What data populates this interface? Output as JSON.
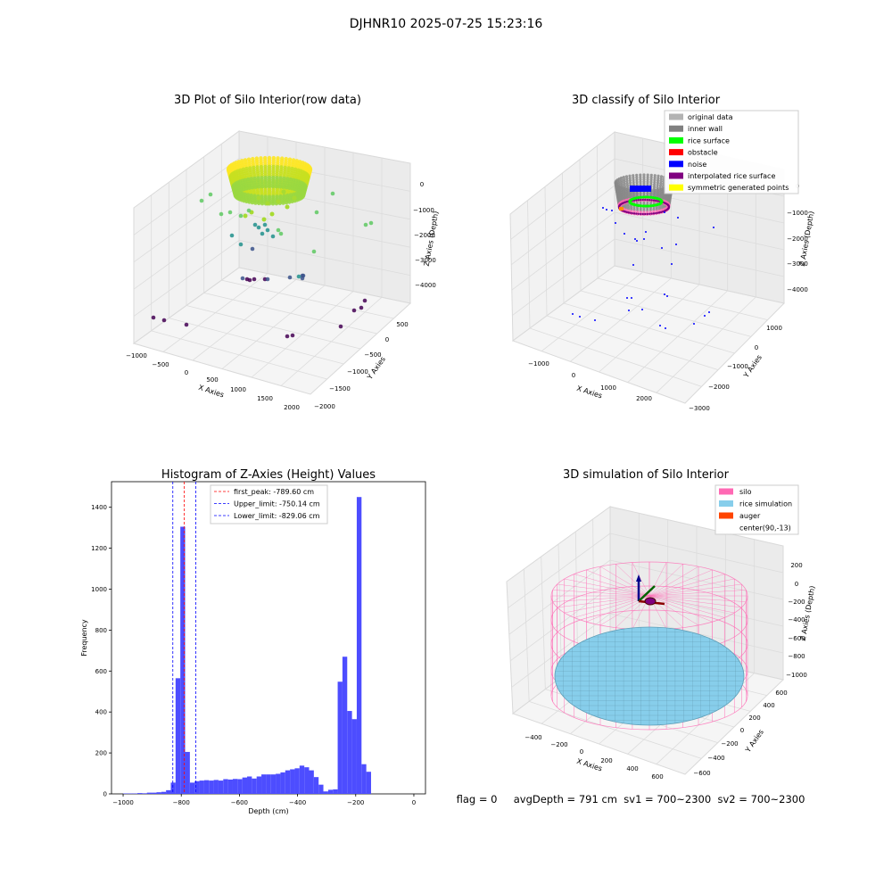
{
  "figure": {
    "suptitle": "DJHNR10 2025-07-25 15:23:16",
    "status_line": "flag = 0     avgDepth = 791 cm  sv1 = 700~2300  sv2 = 700~2300"
  },
  "chart_data": [
    {
      "type": "scatter",
      "projection": "3d",
      "title": "3D Plot of Silo Interior(row data)",
      "xlabel": "X Axies",
      "ylabel": "Y Axies",
      "zlabel": "Z Axies (Depth)",
      "x_ticks": [
        "−1000",
        "−500",
        "0",
        "500",
        "1000",
        "1500",
        "2000"
      ],
      "y_ticks": [
        "−2000",
        "−1500",
        "−1000",
        "−500",
        "0",
        "500"
      ],
      "z_ticks": [
        "0",
        "−1000",
        "−2000",
        "−3000",
        "−4000"
      ],
      "colormap": [
        "#440154",
        "#3b528b",
        "#21918c",
        "#5ec962",
        "#fde725"
      ]
    },
    {
      "type": "scatter",
      "projection": "3d",
      "title": "3D classify of Silo Interior",
      "xlabel": "X Axies",
      "ylabel": "Y Axies",
      "zlabel": "Z Axies (Depth)",
      "x_ticks": [
        "−1000",
        "0",
        "1000",
        "2000"
      ],
      "y_ticks": [
        "−3000",
        "−2000",
        "−1000",
        "0",
        "1000"
      ],
      "z_ticks": [
        "0",
        "−1000",
        "−2000",
        "−3000",
        "−4000"
      ],
      "legend_position": "top-right",
      "legend": [
        {
          "label": "original data",
          "color": "#b3b3b3"
        },
        {
          "label": "inner wall",
          "color": "#808080"
        },
        {
          "label": "rice surface",
          "color": "#00ff00"
        },
        {
          "label": "obstacle",
          "color": "#ff0000"
        },
        {
          "label": "noise",
          "color": "#0000ff"
        },
        {
          "label": "interpolated rice surface",
          "color": "#800080"
        },
        {
          "label": "symmetric generated points",
          "color": "#ffff00"
        }
      ]
    },
    {
      "type": "bar",
      "title": "Histogram of Z-Axies (Height) Values",
      "xlabel": "Depth (cm)",
      "ylabel": "Frequency",
      "xlim": [
        -1040,
        40
      ],
      "ylim": [
        0,
        1525
      ],
      "x_ticks": [
        -1000,
        -800,
        -600,
        -400,
        -200,
        0
      ],
      "x_tick_labels": [
        "−1000",
        "−800",
        "−600",
        "−400",
        "−200",
        "0"
      ],
      "y_ticks": [
        0,
        200,
        400,
        600,
        800,
        1000,
        1200,
        1400
      ],
      "bar_color": "#4d4dff",
      "bin_width": 16.4,
      "bins": [
        [
          -1000,
          2
        ],
        [
          -983.6,
          2
        ],
        [
          -967.2,
          2
        ],
        [
          -950.8,
          4
        ],
        [
          -934.4,
          3
        ],
        [
          -918,
          6
        ],
        [
          -901.6,
          6
        ],
        [
          -885.2,
          8
        ],
        [
          -868.8,
          10
        ],
        [
          -852.4,
          18
        ],
        [
          -836,
          55
        ],
        [
          -819.6,
          565
        ],
        [
          -803.2,
          1305
        ],
        [
          -786.8,
          205
        ],
        [
          -770.4,
          55
        ],
        [
          -754,
          62
        ],
        [
          -737.6,
          65
        ],
        [
          -721.2,
          67
        ],
        [
          -704.8,
          65
        ],
        [
          -688.4,
          68
        ],
        [
          -672,
          65
        ],
        [
          -655.6,
          72
        ],
        [
          -639.2,
          70
        ],
        [
          -622.8,
          73
        ],
        [
          -606.4,
          72
        ],
        [
          -590,
          80
        ],
        [
          -573.6,
          85
        ],
        [
          -557.2,
          75
        ],
        [
          -540.8,
          85
        ],
        [
          -524.4,
          95
        ],
        [
          -508,
          95
        ],
        [
          -491.6,
          95
        ],
        [
          -475.2,
          98
        ],
        [
          -458.8,
          105
        ],
        [
          -442.4,
          115
        ],
        [
          -426,
          120
        ],
        [
          -409.6,
          125
        ],
        [
          -393.2,
          138
        ],
        [
          -376.8,
          130
        ],
        [
          -360.4,
          115
        ],
        [
          -344,
          82
        ],
        [
          -327.6,
          45
        ],
        [
          -311.2,
          12
        ],
        [
          -294.8,
          20
        ],
        [
          -278.4,
          22
        ],
        [
          -262,
          548
        ],
        [
          -245.6,
          670
        ],
        [
          -229.2,
          405
        ],
        [
          -212.8,
          365
        ],
        [
          -196.4,
          1450
        ],
        [
          -180,
          145
        ],
        [
          -163.6,
          108
        ]
      ],
      "vlines": [
        {
          "label": "first_peak: -789.60 cm",
          "x": -789.6,
          "color": "#ff0000"
        },
        {
          "label": "Upper_limit: -750.14 cm",
          "x": -750.14,
          "color": "#0000ff"
        },
        {
          "label": "Lower_limit: -829.06 cm",
          "x": -829.06,
          "color": "#0000ff"
        }
      ],
      "legend_position": "top-center"
    },
    {
      "type": "scatter",
      "projection": "3d",
      "title": "3D simulation of Silo Interior",
      "xlabel": "X Axies",
      "ylabel": "Y Axies",
      "zlabel": "Z Axies (Depth)",
      "x_ticks": [
        "−400",
        "−200",
        "0",
        "200",
        "400",
        "600"
      ],
      "y_ticks": [
        "−600",
        "−400",
        "−200",
        "0",
        "200",
        "400",
        "600"
      ],
      "z_ticks": [
        "200",
        "0",
        "−200",
        "−400",
        "−600",
        "−800",
        "−1000"
      ],
      "legend_position": "top-right",
      "legend": [
        {
          "label": "silo",
          "color": "#ff69b4"
        },
        {
          "label": "rice simulation",
          "color": "#87ceeb"
        },
        {
          "label": "auger",
          "color": "#ff4500"
        },
        {
          "label": "center(90,-13)",
          "color": "#ffffff"
        }
      ]
    }
  ]
}
